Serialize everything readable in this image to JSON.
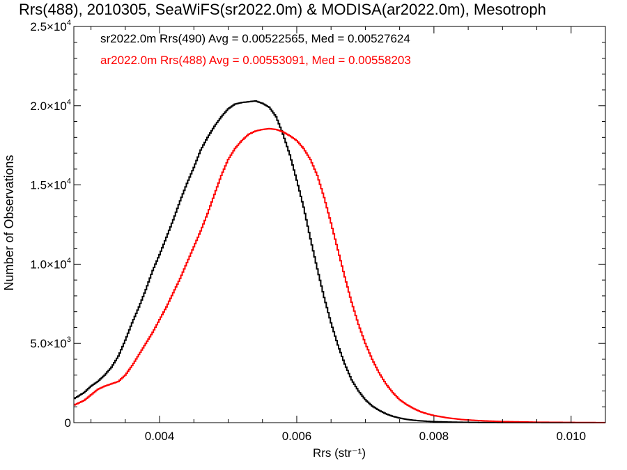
{
  "chart_data": {
    "type": "line",
    "title": "Rrs(488), 2010305, SeaWiFS(sr2022.0m) & MODISA(ar2022.0m), Mesotroph",
    "xlabel": "Rrs (str⁻¹)",
    "ylabel": "Number of Observations",
    "xlim": [
      0.00275,
      0.0105
    ],
    "ylim": [
      0,
      25000
    ],
    "x_ticks": [
      {
        "value": 0.004,
        "label": "0.004"
      },
      {
        "value": 0.006,
        "label": "0.006"
      },
      {
        "value": 0.008,
        "label": "0.008"
      },
      {
        "value": 0.01,
        "label": "0.010"
      }
    ],
    "y_ticks": [
      {
        "value": 0,
        "mant": "0",
        "exp": ""
      },
      {
        "value": 5000,
        "mant": "5.0×10",
        "exp": "3"
      },
      {
        "value": 10000,
        "mant": "1.0×10",
        "exp": "4"
      },
      {
        "value": 15000,
        "mant": "1.5×10",
        "exp": "4"
      },
      {
        "value": 20000,
        "mant": "2.0×10",
        "exp": "4"
      },
      {
        "value": 25000,
        "mant": "2.5×10",
        "exp": "4"
      }
    ],
    "grid": false,
    "legend_placement": "top-left",
    "series": [
      {
        "name": "sr2022.0m Rrs(490) Avg = 0.00522565, Med = 0.00527624",
        "color": "#000000",
        "points": [
          [
            0.00275,
            1500
          ],
          [
            0.0029,
            1900
          ],
          [
            0.003,
            2300
          ],
          [
            0.0031,
            2600
          ],
          [
            0.0032,
            3000
          ],
          [
            0.0033,
            3500
          ],
          [
            0.0034,
            4200
          ],
          [
            0.0035,
            5200
          ],
          [
            0.0036,
            6300
          ],
          [
            0.0037,
            7300
          ],
          [
            0.0038,
            8400
          ],
          [
            0.0039,
            9600
          ],
          [
            0.004,
            10600
          ],
          [
            0.0041,
            11700
          ],
          [
            0.0042,
            12800
          ],
          [
            0.0043,
            14000
          ],
          [
            0.0044,
            15100
          ],
          [
            0.0045,
            16100
          ],
          [
            0.0046,
            17200
          ],
          [
            0.0047,
            18000
          ],
          [
            0.0048,
            18700
          ],
          [
            0.0049,
            19300
          ],
          [
            0.005,
            19800
          ],
          [
            0.0051,
            20100
          ],
          [
            0.0052,
            20200
          ],
          [
            0.0053,
            20250
          ],
          [
            0.0054,
            20300
          ],
          [
            0.0055,
            20150
          ],
          [
            0.0056,
            19900
          ],
          [
            0.0057,
            19300
          ],
          [
            0.0058,
            18200
          ],
          [
            0.0059,
            16900
          ],
          [
            0.006,
            15300
          ],
          [
            0.0061,
            13600
          ],
          [
            0.0062,
            11600
          ],
          [
            0.0063,
            9700
          ],
          [
            0.0064,
            7900
          ],
          [
            0.0065,
            6300
          ],
          [
            0.0066,
            4900
          ],
          [
            0.0067,
            3700
          ],
          [
            0.0068,
            2700
          ],
          [
            0.0069,
            2000
          ],
          [
            0.007,
            1450
          ],
          [
            0.0071,
            1050
          ],
          [
            0.0072,
            780
          ],
          [
            0.0073,
            560
          ],
          [
            0.0074,
            400
          ],
          [
            0.0075,
            290
          ],
          [
            0.0076,
            210
          ],
          [
            0.0077,
            155
          ],
          [
            0.0078,
            115
          ],
          [
            0.0079,
            85
          ],
          [
            0.008,
            65
          ],
          [
            0.0082,
            40
          ],
          [
            0.0084,
            25
          ],
          [
            0.0086,
            15
          ],
          [
            0.0088,
            10
          ],
          [
            0.009,
            7
          ],
          [
            0.0095,
            3
          ],
          [
            0.0105,
            1
          ]
        ]
      },
      {
        "name": "ar2022.0m Rrs(488) Avg = 0.00553091, Med = 0.00558203",
        "color": "#ff0000",
        "points": [
          [
            0.00275,
            1100
          ],
          [
            0.0029,
            1400
          ],
          [
            0.003,
            1750
          ],
          [
            0.0031,
            2100
          ],
          [
            0.0032,
            2300
          ],
          [
            0.0033,
            2450
          ],
          [
            0.0034,
            2600
          ],
          [
            0.0035,
            3000
          ],
          [
            0.0036,
            3600
          ],
          [
            0.0037,
            4300
          ],
          [
            0.0038,
            5000
          ],
          [
            0.0039,
            5700
          ],
          [
            0.004,
            6500
          ],
          [
            0.0041,
            7300
          ],
          [
            0.0042,
            8200
          ],
          [
            0.0043,
            9100
          ],
          [
            0.0044,
            10100
          ],
          [
            0.0045,
            11100
          ],
          [
            0.0046,
            12100
          ],
          [
            0.0047,
            13200
          ],
          [
            0.0048,
            14400
          ],
          [
            0.0049,
            15600
          ],
          [
            0.005,
            16600
          ],
          [
            0.0051,
            17300
          ],
          [
            0.0052,
            17800
          ],
          [
            0.0053,
            18200
          ],
          [
            0.0054,
            18400
          ],
          [
            0.0055,
            18500
          ],
          [
            0.0056,
            18550
          ],
          [
            0.0057,
            18500
          ],
          [
            0.0058,
            18350
          ],
          [
            0.0059,
            18100
          ],
          [
            0.006,
            17800
          ],
          [
            0.0061,
            17300
          ],
          [
            0.0062,
            16600
          ],
          [
            0.0063,
            15600
          ],
          [
            0.0064,
            14200
          ],
          [
            0.0065,
            12600
          ],
          [
            0.0066,
            10900
          ],
          [
            0.0067,
            9200
          ],
          [
            0.0068,
            7600
          ],
          [
            0.0069,
            6200
          ],
          [
            0.007,
            5000
          ],
          [
            0.0071,
            4000
          ],
          [
            0.0072,
            3150
          ],
          [
            0.0073,
            2450
          ],
          [
            0.0074,
            1900
          ],
          [
            0.0075,
            1450
          ],
          [
            0.0076,
            1150
          ],
          [
            0.0077,
            900
          ],
          [
            0.0078,
            700
          ],
          [
            0.0079,
            560
          ],
          [
            0.008,
            450
          ],
          [
            0.0082,
            300
          ],
          [
            0.0084,
            200
          ],
          [
            0.0086,
            140
          ],
          [
            0.0088,
            100
          ],
          [
            0.009,
            70
          ],
          [
            0.0095,
            30
          ],
          [
            0.01,
            15
          ],
          [
            0.0105,
            5
          ]
        ]
      }
    ]
  }
}
